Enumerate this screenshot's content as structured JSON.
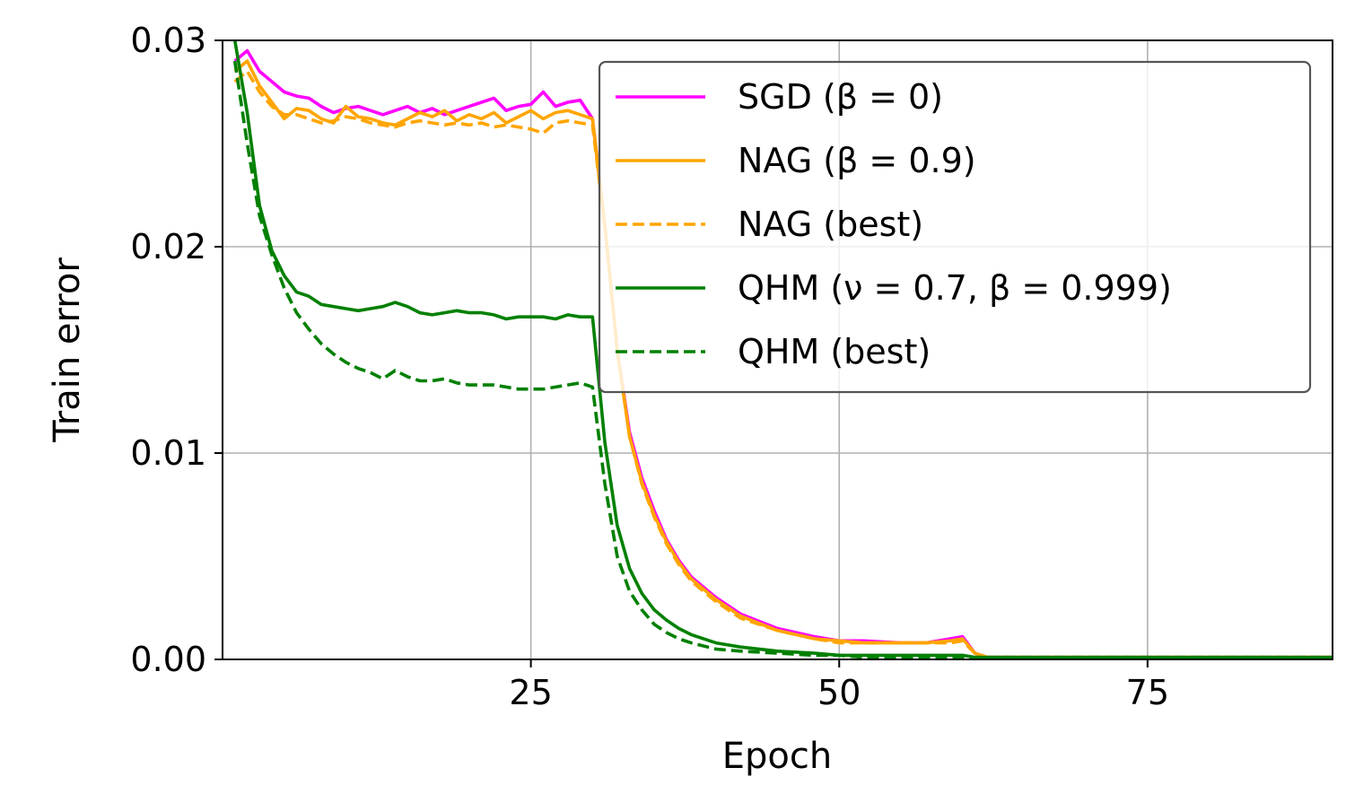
{
  "chart_data": {
    "type": "line",
    "title": "",
    "xlabel": "Epoch",
    "ylabel": "Train error",
    "xlim": [
      0,
      90
    ],
    "ylim": [
      0,
      0.03
    ],
    "xticks": [
      25,
      50,
      75
    ],
    "xtick_labels": [
      "25",
      "50",
      "75"
    ],
    "yticks": [
      0,
      0.01,
      0.02,
      0.03
    ],
    "ytick_labels": [
      "0.00",
      "0.01",
      "0.02",
      "0.03"
    ],
    "grid": true,
    "legend_position": "top-right",
    "series": [
      {
        "name": "SGD (β = 0)",
        "color": "#ff00ff",
        "dash": "solid",
        "x": [
          1,
          2,
          3,
          4,
          5,
          6,
          7,
          8,
          9,
          10,
          11,
          12,
          13,
          14,
          15,
          16,
          17,
          18,
          19,
          20,
          21,
          22,
          23,
          24,
          25,
          26,
          27,
          28,
          29,
          30,
          31,
          32,
          33,
          34,
          35,
          36,
          37,
          38,
          40,
          42,
          45,
          48,
          50,
          52,
          55,
          57,
          59,
          60,
          61,
          62,
          65,
          70,
          75,
          80,
          85,
          90
        ],
        "values": [
          0.029,
          0.0295,
          0.0285,
          0.028,
          0.0275,
          0.0273,
          0.0272,
          0.0268,
          0.0265,
          0.0267,
          0.0268,
          0.0266,
          0.0264,
          0.0266,
          0.0268,
          0.0265,
          0.0267,
          0.0264,
          0.0266,
          0.0268,
          0.027,
          0.0272,
          0.0266,
          0.0268,
          0.0269,
          0.0275,
          0.0268,
          0.027,
          0.0271,
          0.0262,
          0.021,
          0.015,
          0.011,
          0.0088,
          0.0072,
          0.0058,
          0.0048,
          0.004,
          0.003,
          0.0022,
          0.0015,
          0.0011,
          0.0009,
          0.0009,
          0.0008,
          0.0008,
          0.001,
          0.0011,
          0.0003,
          0.0001,
          0.0001,
          0.0001,
          0.0001,
          0.0001,
          0.0001,
          0.0001
        ]
      },
      {
        "name": "NAG (β = 0.9)",
        "color": "#ffa500",
        "dash": "solid",
        "x": [
          1,
          2,
          3,
          4,
          5,
          6,
          7,
          8,
          9,
          10,
          11,
          12,
          13,
          14,
          15,
          16,
          17,
          18,
          19,
          20,
          21,
          22,
          23,
          24,
          25,
          26,
          27,
          28,
          29,
          30,
          31,
          32,
          33,
          34,
          35,
          36,
          37,
          38,
          40,
          42,
          45,
          48,
          50,
          52,
          55,
          57,
          59,
          60,
          61,
          62,
          65,
          70,
          75,
          80,
          85,
          90
        ],
        "values": [
          0.0285,
          0.029,
          0.0278,
          0.027,
          0.0262,
          0.0267,
          0.0266,
          0.0262,
          0.026,
          0.0268,
          0.0263,
          0.0262,
          0.026,
          0.0259,
          0.0262,
          0.0265,
          0.0263,
          0.0266,
          0.0261,
          0.0264,
          0.0262,
          0.0265,
          0.026,
          0.0263,
          0.0266,
          0.0262,
          0.0265,
          0.0266,
          0.0264,
          0.0262,
          0.021,
          0.015,
          0.0108,
          0.0086,
          0.007,
          0.0057,
          0.0047,
          0.0039,
          0.0029,
          0.0021,
          0.0014,
          0.001,
          0.0009,
          0.0008,
          0.0008,
          0.0008,
          0.0009,
          0.001,
          0.0003,
          0.0001,
          0.0001,
          0.0001,
          0.0001,
          0.0001,
          0.0001,
          0.0001
        ]
      },
      {
        "name": "NAG (best)",
        "color": "#ffa500",
        "dash": "dashed",
        "x": [
          1,
          2,
          3,
          4,
          5,
          6,
          7,
          8,
          9,
          10,
          11,
          12,
          13,
          14,
          15,
          16,
          17,
          18,
          19,
          20,
          21,
          22,
          23,
          24,
          25,
          26,
          27,
          28,
          29,
          30,
          31,
          32,
          33,
          34,
          35,
          36,
          37,
          38,
          40,
          42,
          45,
          48,
          50,
          52,
          55,
          57,
          59,
          60,
          61,
          62,
          65,
          70,
          75,
          80,
          85,
          90
        ],
        "values": [
          0.028,
          0.0285,
          0.0275,
          0.0268,
          0.0264,
          0.0264,
          0.0262,
          0.026,
          0.0261,
          0.0263,
          0.0262,
          0.026,
          0.0259,
          0.0258,
          0.026,
          0.0261,
          0.026,
          0.0259,
          0.026,
          0.0259,
          0.026,
          0.0258,
          0.0259,
          0.0258,
          0.0257,
          0.0255,
          0.026,
          0.0261,
          0.026,
          0.0259,
          0.021,
          0.015,
          0.0108,
          0.0085,
          0.0069,
          0.0056,
          0.0046,
          0.0038,
          0.0028,
          0.002,
          0.0014,
          0.001,
          0.0008,
          0.0008,
          0.0008,
          0.0008,
          0.0008,
          0.0009,
          0.0003,
          0.0001,
          0.0001,
          0.0001,
          0.0001,
          0.0001,
          0.0001,
          0.0001
        ]
      },
      {
        "name": "QHM (ν = 0.7, β = 0.999)",
        "color": "#008000",
        "dash": "solid",
        "x": [
          1,
          2,
          3,
          4,
          5,
          6,
          7,
          8,
          9,
          10,
          11,
          12,
          13,
          14,
          15,
          16,
          17,
          18,
          19,
          20,
          21,
          22,
          23,
          24,
          25,
          26,
          27,
          28,
          29,
          30,
          31,
          32,
          33,
          34,
          35,
          36,
          37,
          38,
          40,
          42,
          45,
          48,
          50,
          52,
          55,
          57,
          59,
          60,
          61,
          62,
          65,
          70,
          75,
          80,
          85,
          90
        ],
        "values": [
          0.03,
          0.0265,
          0.022,
          0.0198,
          0.0186,
          0.0178,
          0.0176,
          0.0172,
          0.0171,
          0.017,
          0.0169,
          0.017,
          0.0171,
          0.0173,
          0.0171,
          0.0168,
          0.0167,
          0.0168,
          0.0169,
          0.0168,
          0.0168,
          0.0167,
          0.0165,
          0.0166,
          0.0166,
          0.0166,
          0.0165,
          0.0167,
          0.0166,
          0.0166,
          0.0105,
          0.0065,
          0.0044,
          0.0032,
          0.0024,
          0.0019,
          0.0015,
          0.0012,
          0.0008,
          0.0006,
          0.0004,
          0.0003,
          0.0002,
          0.0002,
          0.0002,
          0.0002,
          0.0002,
          0.0002,
          0.0001,
          0.0001,
          0.0001,
          0.0001,
          0.0001,
          0.0001,
          0.0001,
          0.0001
        ]
      },
      {
        "name": "QHM (best)",
        "color": "#008000",
        "dash": "dashed",
        "x": [
          1,
          2,
          3,
          4,
          5,
          6,
          7,
          8,
          9,
          10,
          11,
          12,
          13,
          14,
          15,
          16,
          17,
          18,
          19,
          20,
          21,
          22,
          23,
          24,
          25,
          26,
          27,
          28,
          29,
          30,
          31,
          32,
          33,
          34,
          35,
          36,
          37,
          38,
          40,
          42,
          45,
          48,
          50,
          52,
          55,
          57,
          59,
          60,
          61,
          62,
          65,
          70,
          75,
          80,
          85,
          90
        ],
        "values": [
          0.029,
          0.025,
          0.0215,
          0.0196,
          0.018,
          0.0168,
          0.016,
          0.0153,
          0.0148,
          0.0144,
          0.0141,
          0.0139,
          0.0136,
          0.014,
          0.0137,
          0.0135,
          0.0135,
          0.0136,
          0.0134,
          0.0133,
          0.0133,
          0.0133,
          0.0132,
          0.0131,
          0.0131,
          0.0131,
          0.0132,
          0.0133,
          0.0134,
          0.0132,
          0.0085,
          0.005,
          0.0033,
          0.0024,
          0.0017,
          0.0013,
          0.001,
          0.0008,
          0.0005,
          0.0004,
          0.0003,
          0.0002,
          0.0002,
          0.0001,
          0.0001,
          0.0001,
          0.0001,
          0.0001,
          0.0001,
          0.0001,
          0.0001,
          0.0001,
          0.0001,
          0.0001,
          0.0001,
          0.0001
        ]
      }
    ]
  }
}
